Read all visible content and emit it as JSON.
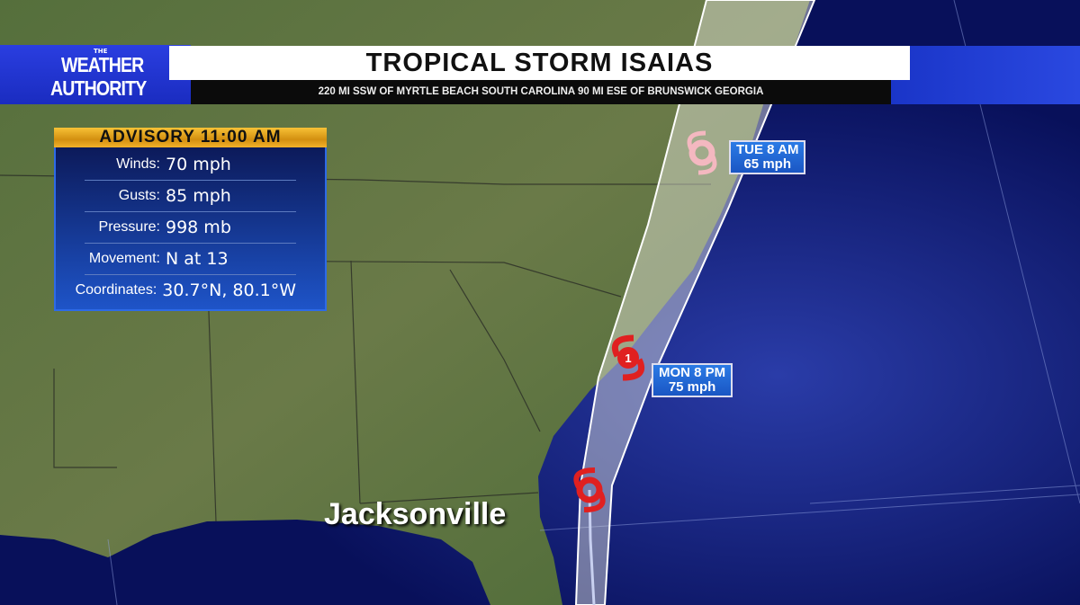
{
  "logo": {
    "small": "THE",
    "line1": "WEATHER",
    "line2": "AUTHORITY"
  },
  "header": {
    "title": "TROPICAL STORM ISAIAS",
    "subtitle": "220 MI SSW OF MYRTLE BEACH SOUTH CAROLINA 90 MI ESE OF BRUNSWICK GEORGIA"
  },
  "advisory": {
    "title": "ADVISORY 11:00 AM",
    "rows": [
      {
        "label": "Winds:",
        "value": "70 mph"
      },
      {
        "label": "Gusts:",
        "value": "85 mph"
      },
      {
        "label": "Pressure:",
        "value": "998 mb"
      },
      {
        "label": "Movement:",
        "value": "N at 13"
      },
      {
        "label": "Coordinates:",
        "value": "30.7°N, 80.1°W"
      }
    ]
  },
  "forecast_points": [
    {
      "time": "MON 8 PM",
      "wind": "75 mph",
      "category": "1",
      "icon": "hurricane-icon",
      "color": "#e02020"
    },
    {
      "time": "TUE 8 AM",
      "wind": "65 mph",
      "icon": "tropical-storm-icon",
      "color": "#f4b8c0"
    }
  ],
  "current": {
    "icon": "tropical-storm-icon",
    "color": "#e02020"
  },
  "city": "Jacksonville",
  "colors": {
    "land": "#4f6b3a",
    "ocean": "#0a1466",
    "cone": "#d8d8d0",
    "brand": "#1f35d0"
  }
}
